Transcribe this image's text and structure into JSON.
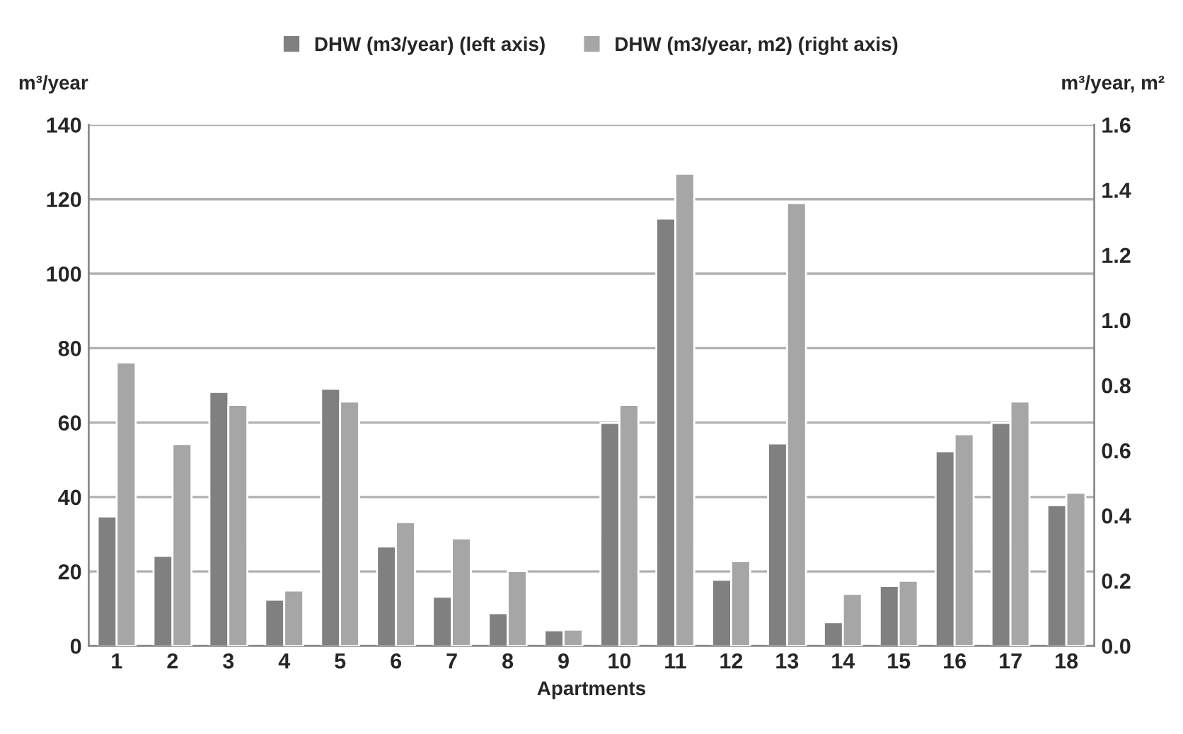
{
  "chart_data": {
    "type": "bar",
    "xlabel": "Apartments",
    "ylabel": "m³/year",
    "y2label": "m³/year, m²",
    "categories": [
      "1",
      "2",
      "3",
      "4",
      "5",
      "6",
      "7",
      "8",
      "9",
      "10",
      "11",
      "12",
      "13",
      "14",
      "15",
      "16",
      "17",
      "18"
    ],
    "series": [
      {
        "name": "DHW (m3/year) (left axis)",
        "color": "#808080",
        "values": [
          34.8,
          24.2,
          68.2,
          12.4,
          69.1,
          26.7,
          13.2,
          8.8,
          4.2,
          59.9,
          114.8,
          17.8,
          54.4,
          6.4,
          16.1,
          52.3,
          59.9,
          37.8
        ]
      },
      {
        "name": "DHW (m3/year, m2) (right axis)",
        "color": "#a6a6a6",
        "axis": "y2",
        "values": [
          0.87,
          0.62,
          0.74,
          0.17,
          0.75,
          0.38,
          0.33,
          0.23,
          0.05,
          0.74,
          1.45,
          0.26,
          1.36,
          0.16,
          0.2,
          0.65,
          0.75,
          0.47
        ]
      }
    ],
    "ylim": [
      0,
      140
    ],
    "yticks": [
      0,
      20,
      40,
      60,
      80,
      100,
      120,
      140
    ],
    "y2lim": [
      0,
      1.6
    ],
    "y2ticks": [
      {
        "value": 0,
        "label": "0.0"
      },
      {
        "value": 0.2,
        "label": "0.2"
      },
      {
        "value": 0.4,
        "label": "0.4"
      },
      {
        "value": 0.6,
        "label": "0.6"
      },
      {
        "value": 0.8,
        "label": "0.8"
      },
      {
        "value": 1.0,
        "label": "1.0"
      },
      {
        "value": 1.2,
        "label": "1.2"
      },
      {
        "value": 1.4,
        "label": "1.4"
      },
      {
        "value": 1.6,
        "label": "1.6"
      }
    ],
    "grid": "y",
    "legend": "top"
  }
}
